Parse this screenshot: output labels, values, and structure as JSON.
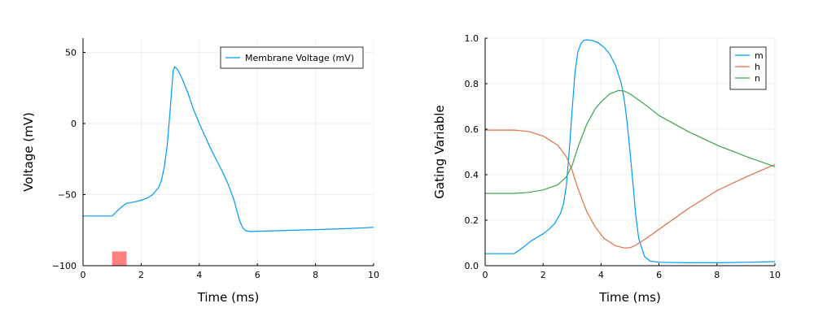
{
  "chart_data": [
    {
      "type": "line",
      "xlabel": "Time (ms)",
      "ylabel": "Voltage (mV)",
      "xlim": [
        0,
        10
      ],
      "ylim": [
        -100,
        60
      ],
      "xticks": [
        0,
        2,
        4,
        6,
        8,
        10
      ],
      "xtick_labels": [
        "0",
        "2",
        "4",
        "6",
        "8",
        "10"
      ],
      "yticks": [
        -100,
        -50,
        0,
        50
      ],
      "ytick_labels": [
        "−100",
        "−50",
        "0",
        "50"
      ],
      "grid": true,
      "legend_position": "top-right",
      "stimulus": {
        "x_start": 1.0,
        "x_end": 1.5,
        "y_bottom": -100,
        "y_top": -90,
        "color": "#fe8080"
      },
      "series": [
        {
          "name": "Membrane Voltage (mV)",
          "color": "#009af9",
          "x": [
            0,
            0.5,
            1.0,
            1.2,
            1.4,
            1.5,
            1.6,
            1.8,
            2.0,
            2.2,
            2.4,
            2.6,
            2.7,
            2.8,
            2.9,
            3.0,
            3.1,
            3.15,
            3.25,
            3.4,
            3.6,
            3.8,
            4.0,
            4.2,
            4.4,
            4.6,
            4.8,
            5.0,
            5.2,
            5.3,
            5.4,
            5.5,
            5.6,
            5.8,
            6.0,
            7.0,
            8.0,
            9.0,
            10.0
          ],
          "y": [
            -65,
            -65,
            -65,
            -61,
            -57.5,
            -56,
            -55.8,
            -55,
            -54,
            -52.5,
            -50,
            -45,
            -40,
            -30,
            -15,
            10,
            37,
            40,
            38,
            32,
            22,
            10,
            0,
            -9,
            -18,
            -26,
            -34,
            -43,
            -54,
            -62,
            -69,
            -73.5,
            -75.5,
            -76,
            -75.8,
            -75.2,
            -74.6,
            -74,
            -73
          ]
        }
      ]
    },
    {
      "type": "line",
      "xlabel": "Time (ms)",
      "ylabel": "Gating Variable",
      "xlim": [
        0,
        10
      ],
      "ylim": [
        0,
        1
      ],
      "xticks": [
        0,
        2,
        4,
        6,
        8,
        10
      ],
      "xtick_labels": [
        "0",
        "2",
        "4",
        "6",
        "8",
        "10"
      ],
      "yticks": [
        0,
        0.2,
        0.4,
        0.6,
        0.8,
        1.0
      ],
      "ytick_labels": [
        "0.0",
        "0.2",
        "0.4",
        "0.6",
        "0.8",
        "1.0"
      ],
      "grid": true,
      "legend_position": "top-right",
      "series": [
        {
          "name": "m",
          "color": "#009af9",
          "x": [
            0,
            1.0,
            1.2,
            1.4,
            1.6,
            1.8,
            2.0,
            2.2,
            2.4,
            2.6,
            2.7,
            2.8,
            2.9,
            3.0,
            3.1,
            3.2,
            3.3,
            3.4,
            3.5,
            3.7,
            3.9,
            4.1,
            4.3,
            4.5,
            4.7,
            4.8,
            4.9,
            5.0,
            5.1,
            5.2,
            5.3,
            5.5,
            5.7,
            6.0,
            7.0,
            8.0,
            9.0,
            10.0
          ],
          "y": [
            0.053,
            0.053,
            0.07,
            0.09,
            0.11,
            0.125,
            0.14,
            0.16,
            0.185,
            0.23,
            0.27,
            0.35,
            0.5,
            0.68,
            0.85,
            0.94,
            0.975,
            0.99,
            0.993,
            0.99,
            0.98,
            0.96,
            0.93,
            0.88,
            0.8,
            0.73,
            0.63,
            0.5,
            0.36,
            0.22,
            0.12,
            0.04,
            0.02,
            0.015,
            0.013,
            0.013,
            0.015,
            0.018
          ]
        },
        {
          "name": "h",
          "color": "#e26f46",
          "x": [
            0,
            1.0,
            1.5,
            2.0,
            2.5,
            2.8,
            3.0,
            3.2,
            3.5,
            3.8,
            4.1,
            4.5,
            4.8,
            5.0,
            5.2,
            5.5,
            6.0,
            7.0,
            8.0,
            9.0,
            10.0
          ],
          "y": [
            0.596,
            0.596,
            0.59,
            0.57,
            0.53,
            0.48,
            0.42,
            0.34,
            0.24,
            0.17,
            0.12,
            0.087,
            0.078,
            0.079,
            0.09,
            0.115,
            0.16,
            0.25,
            0.33,
            0.39,
            0.445
          ]
        },
        {
          "name": "n",
          "color": "#3da44d",
          "x": [
            0,
            1.0,
            1.5,
            2.0,
            2.5,
            2.8,
            3.0,
            3.2,
            3.5,
            3.8,
            4.0,
            4.3,
            4.6,
            4.8,
            5.0,
            5.5,
            6.0,
            7.0,
            8.0,
            9.0,
            10.0
          ],
          "y": [
            0.318,
            0.318,
            0.322,
            0.333,
            0.355,
            0.39,
            0.44,
            0.52,
            0.62,
            0.69,
            0.72,
            0.755,
            0.77,
            0.768,
            0.755,
            0.71,
            0.66,
            0.59,
            0.53,
            0.48,
            0.435
          ]
        }
      ]
    }
  ]
}
